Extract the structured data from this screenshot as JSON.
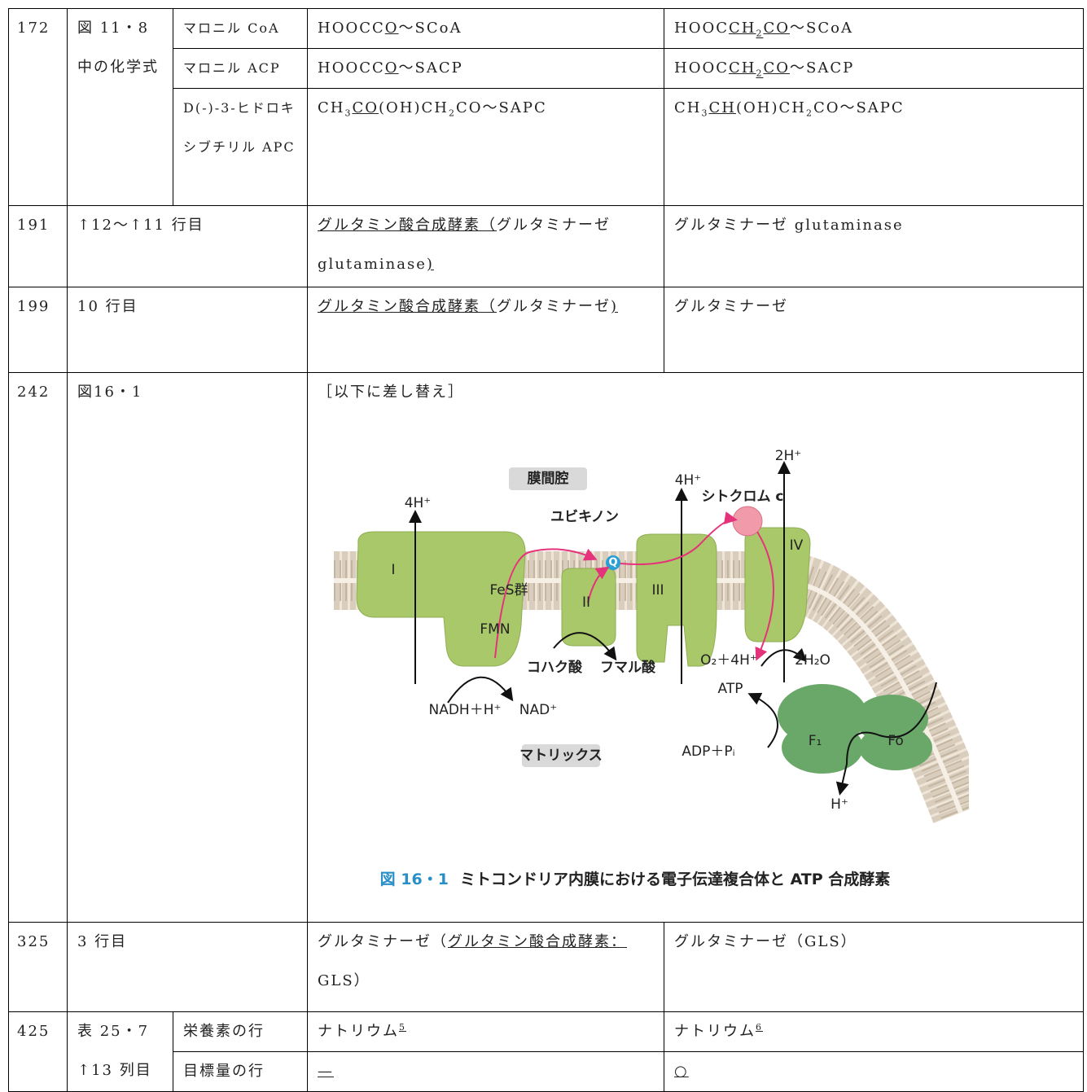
{
  "table": {
    "rows": [
      {
        "page": "172",
        "location": [
          "図 11・8 中の化学式"
        ],
        "entries": [
          {
            "term": "マロニル CoA",
            "wrong": [
              "HOOCC",
              {
                "text": "O",
                "style": "u"
              },
              "～SCoA"
            ],
            "right": [
              "HOOC",
              {
                "text": "CH",
                "style": "u"
              },
              {
                "text": "2",
                "style": "u sub"
              },
              {
                "text": "CO",
                "style": "u"
              },
              "～SCoA"
            ]
          },
          {
            "term": "マロニル ACP",
            "wrong": [
              "HOOCC",
              {
                "text": "O",
                "style": "u"
              },
              "～SACP"
            ],
            "right": [
              "HOOC",
              {
                "text": "CH",
                "style": "u"
              },
              {
                "text": "2",
                "style": "u sub"
              },
              {
                "text": "CO",
                "style": "u"
              },
              "～SACP"
            ]
          },
          {
            "term": "D(-)-3-ヒドロキシブチリル APC",
            "wrong": [
              "CH",
              {
                "text": "3",
                "style": "sub"
              },
              {
                "text": "CO",
                "style": "u"
              },
              "(OH)CH",
              {
                "text": "2",
                "style": "sub"
              },
              "CO～SAPC"
            ],
            "right": [
              "CH",
              {
                "text": "3",
                "style": "sub"
              },
              {
                "text": "CH",
                "style": "u"
              },
              "(OH)CH",
              {
                "text": "2",
                "style": "sub"
              },
              "CO～SAPC"
            ]
          }
        ]
      },
      {
        "page": "191",
        "location": [
          "↑12～↑11 行目"
        ],
        "entries": [
          {
            "wrong": [
              {
                "text": "グルタミン酸合成酵素（",
                "style": "u"
              },
              "グルタミナーゼ glutaminase",
              {
                "text": ")",
                "style": "u"
              }
            ],
            "right": [
              "グルタミナーゼ glutaminase"
            ]
          }
        ]
      },
      {
        "page": "199",
        "location": [
          "10 行目"
        ],
        "entries": [
          {
            "wrong": [
              {
                "text": "グルタミン酸合成酵素（",
                "style": "u"
              },
              "グルタミナーゼ",
              {
                "text": ")",
                "style": "u"
              }
            ],
            "right": [
              "グルタミナーゼ"
            ]
          }
        ]
      },
      {
        "page": "242",
        "location": [
          "図16・1"
        ],
        "entries": [
          {
            "wrong": [
              "［以下に差し替え］"
            ]
          }
        ],
        "figure": {
          "labels": [
            "膜間腔",
            "4H⁺",
            "ユビキノン",
            "4H⁺",
            "シトクロム c",
            "2H⁺",
            "I",
            "Q",
            "IV",
            "FeS群",
            "II",
            "III",
            "FMN",
            "コハク酸",
            "フマル酸",
            "O₂＋4H⁺",
            "2H₂O",
            "ATP",
            "NADH＋H⁺",
            "NAD⁺",
            "F₁",
            "Fo",
            "ADP＋Pᵢ",
            "マトリックス",
            "H⁺"
          ],
          "caption": [
            "図 16・1",
            "ミトコンドリア内膜における電子伝達複合体と ATP 合成酵素"
          ]
        }
      },
      {
        "page": "325",
        "location": [
          "3 行目"
        ],
        "entries": [
          {
            "wrong": [
              "グルタミナーゼ（",
              {
                "text": "グルタミン酸合成酵素：",
                "style": "u"
              },
              "GLS）"
            ],
            "right": [
              "グルタミナーゼ（GLS）"
            ]
          }
        ]
      },
      {
        "page": "425",
        "location": [
          "表 25・7",
          "↑13 列目"
        ],
        "entries": [
          {
            "term": "栄養素の行",
            "wrong": [
              "ナトリウム",
              {
                "text": "5",
                "style": "u sup"
              }
            ],
            "right": [
              "ナトリウム",
              {
                "text": "6",
                "style": "u sup"
              }
            ]
          },
          {
            "term": "目標量の行",
            "wrong": [
              {
                "text": "—",
                "style": "u"
              }
            ],
            "right": [
              {
                "text": "○",
                "style": "u"
              }
            ]
          }
        ]
      }
    ]
  }
}
